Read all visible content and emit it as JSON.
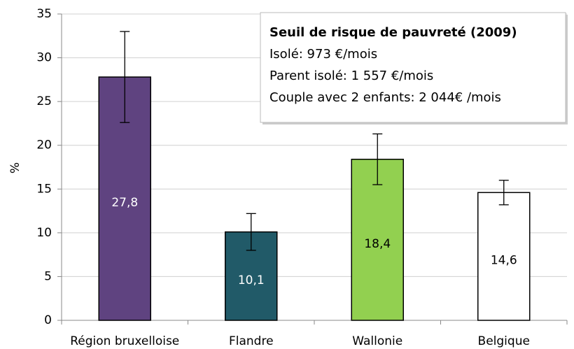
{
  "chart_data": {
    "type": "bar",
    "y_label": "%",
    "categories": [
      "Région bruxelloise",
      "Flandre",
      "Wallonie",
      "Belgique"
    ],
    "values": [
      27.8,
      10.1,
      18.4,
      14.6
    ],
    "value_labels": [
      "27,8",
      "10,1",
      "18,4",
      "14,6"
    ],
    "errors": [
      5.2,
      2.1,
      2.9,
      1.4
    ],
    "colors": [
      "#5f4380",
      "#215a68",
      "#92d050",
      "#ffffff"
    ],
    "ylim": [
      0,
      35
    ],
    "yticks": [
      0,
      5,
      10,
      15,
      20,
      25,
      30,
      35
    ],
    "grid": true,
    "annotation": {
      "title": "Seuil de risque de pauvreté (2009)",
      "lines": [
        "Isolé: 973 €/mois",
        "Parent isolé: 1 557  €/mois",
        "Couple avec 2 enfants: 2 044€ /mois"
      ]
    }
  }
}
